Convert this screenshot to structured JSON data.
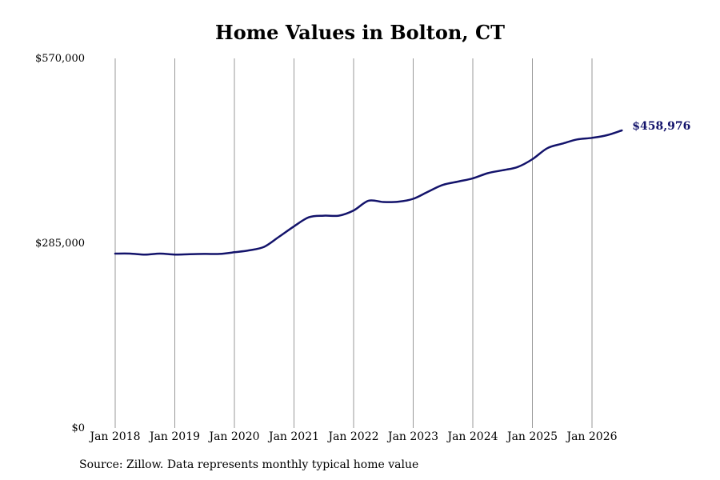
{
  "chart_data": {
    "type": "line",
    "title": "Home Values in Bolton, CT",
    "xlabel": "",
    "ylabel": "",
    "ylim": [
      0,
      570000
    ],
    "y_ticks": [
      0,
      285000,
      570000
    ],
    "y_tick_labels": [
      "$0",
      "$285,000",
      "$570,000"
    ],
    "x_ticks": [
      "2018-01",
      "2019-01",
      "2020-01",
      "2021-01",
      "2022-01",
      "2023-01",
      "2024-01",
      "2025-01",
      "2026-01"
    ],
    "x_tick_labels": [
      "Jan 2018",
      "Jan 2019",
      "Jan 2020",
      "Jan 2021",
      "Jan 2022",
      "Jan 2023",
      "Jan 2024",
      "Jan 2025",
      "Jan 2026"
    ],
    "grid": "vertical",
    "line_color": "#13136b",
    "end_label": "$458,976",
    "series": [
      {
        "x": [
          "2018-01",
          "2018-04",
          "2018-07",
          "2018-10",
          "2019-01",
          "2019-04",
          "2019-07",
          "2019-10",
          "2020-01",
          "2020-04",
          "2020-07",
          "2020-10",
          "2021-01",
          "2021-04",
          "2021-07",
          "2021-10",
          "2022-01",
          "2022-04",
          "2022-07",
          "2022-10",
          "2023-01",
          "2023-04",
          "2023-07",
          "2023-10",
          "2024-01",
          "2024-04",
          "2024-07",
          "2024-10",
          "2025-01",
          "2025-04",
          "2025-07",
          "2025-10",
          "2026-01",
          "2026-04",
          "2026-07"
        ],
        "values": [
          269000,
          269000,
          267500,
          269000,
          267500,
          268000,
          268500,
          268500,
          271000,
          274000,
          279500,
          295000,
          311000,
          325000,
          327500,
          327500,
          335500,
          350500,
          348500,
          349000,
          353500,
          364500,
          375000,
          380000,
          385000,
          393000,
          397500,
          402500,
          414500,
          431500,
          438500,
          445000,
          447500,
          451500,
          458976
        ]
      }
    ]
  },
  "source": "Source: Zillow. Data represents monthly typical home value"
}
